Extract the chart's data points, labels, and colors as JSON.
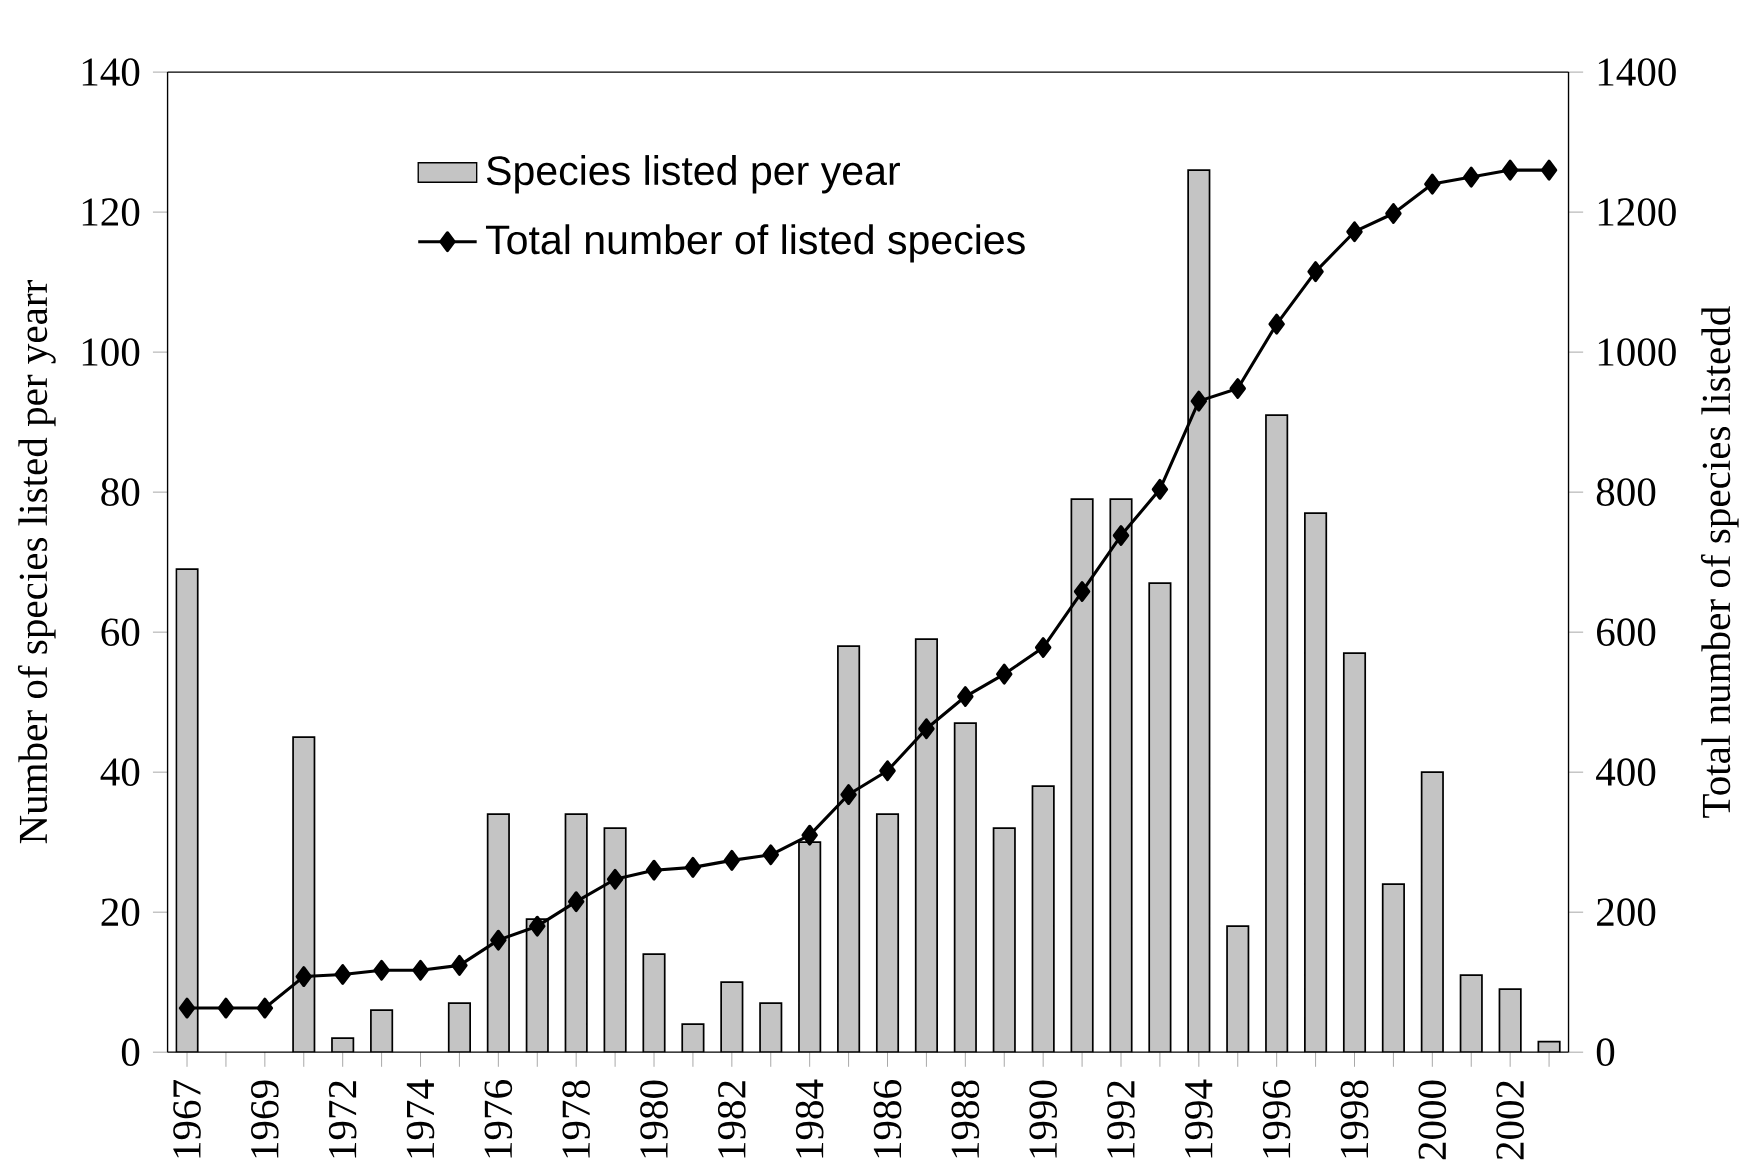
{
  "chart_data": {
    "type": "bar",
    "ylabel": "Number of species listed per yearr",
    "y2label": "Total number of species listedd",
    "categories": [
      "1967",
      null,
      "1969",
      null,
      "1972",
      null,
      "1974",
      null,
      "1976",
      null,
      "1978",
      null,
      "1980",
      null,
      "1982",
      null,
      "1984",
      null,
      "1986",
      null,
      "1988",
      null,
      "1990",
      null,
      "1992",
      null,
      "1994",
      null,
      "1996",
      null,
      "1998",
      null,
      "2000",
      null,
      "2002",
      null
    ],
    "series": [
      {
        "name": "Species listed per year",
        "color": "#c4c4c4",
        "values": [
          69,
          null,
          null,
          45,
          2,
          6,
          null,
          7,
          34,
          19,
          34,
          32,
          14,
          4,
          10,
          7,
          30,
          58,
          34,
          59,
          47,
          32,
          38,
          79,
          79,
          67,
          126,
          18,
          91,
          77,
          57,
          24,
          40,
          11,
          9,
          1.5
        ]
      },
      {
        "name": "Total number of listed species",
        "type": "line",
        "axis": "y2",
        "color": "#000000",
        "marker": "diamond",
        "values": [
          63,
          63,
          63,
          108,
          111,
          117,
          117,
          124,
          160,
          180,
          215,
          247,
          260,
          264,
          274,
          282,
          310,
          368,
          402,
          462,
          508,
          540,
          578,
          658,
          738,
          804,
          930,
          948,
          1040,
          1115,
          1172,
          1198,
          1240,
          1250,
          1260,
          1260
        ]
      }
    ],
    "ylim": [
      0,
      140
    ],
    "yticks": [
      0,
      20,
      40,
      60,
      80,
      100,
      120,
      140
    ],
    "y2lim": [
      0,
      1400
    ],
    "y2ticks": [
      0,
      200,
      400,
      600,
      800,
      1000,
      1200,
      1400
    ],
    "legend": "top left",
    "grid": false
  }
}
